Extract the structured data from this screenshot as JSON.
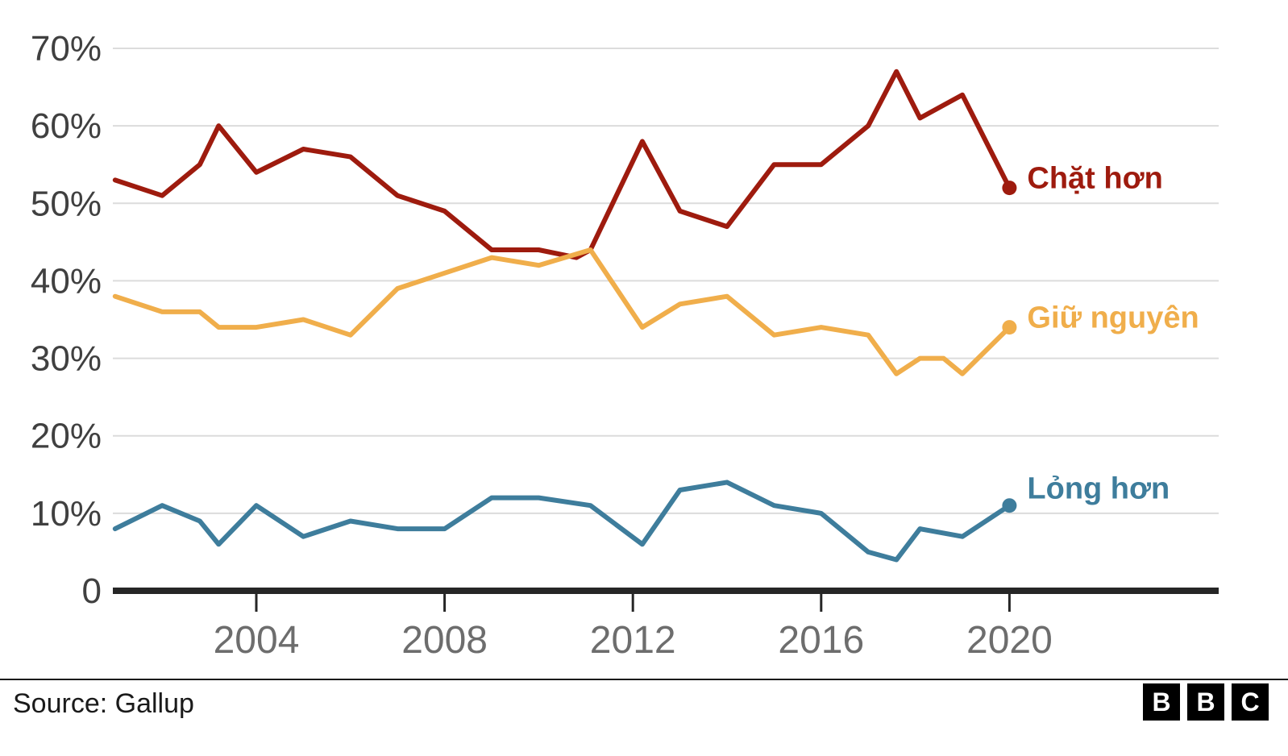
{
  "chart_data": {
    "type": "line",
    "title": "",
    "xlabel": "",
    "ylabel": "",
    "y_max": 70,
    "grid": "horizontal",
    "colors": {
      "grid": "#dcdcdc",
      "axis": "#262626",
      "y_tick_label": "#404040",
      "x_tick_label": "#6d6d6d"
    },
    "y_ticks": [
      {
        "value": 70,
        "label": "70%"
      },
      {
        "value": 60,
        "label": "60%"
      },
      {
        "value": 50,
        "label": "50%"
      },
      {
        "value": 40,
        "label": "40%"
      },
      {
        "value": 30,
        "label": "30%"
      },
      {
        "value": 20,
        "label": "20%"
      },
      {
        "value": 10,
        "label": "10%"
      },
      {
        "value": 0,
        "label": "0"
      }
    ],
    "x_ticks": [
      {
        "value": 2004,
        "label": "2004"
      },
      {
        "value": 2008,
        "label": "2008"
      },
      {
        "value": 2012,
        "label": "2012"
      },
      {
        "value": 2016,
        "label": "2016"
      },
      {
        "value": 2020,
        "label": "2020"
      }
    ],
    "series": [
      {
        "id": "chat-hon",
        "name": "Chặt hơn",
        "color": "#9e1b0e",
        "points": [
          [
            2001,
            53
          ],
          [
            2002,
            51
          ],
          [
            2002.8,
            55
          ],
          [
            2003.2,
            60
          ],
          [
            2004,
            54
          ],
          [
            2005,
            57
          ],
          [
            2006,
            56
          ],
          [
            2007,
            51
          ],
          [
            2008,
            49
          ],
          [
            2009,
            44
          ],
          [
            2010,
            44
          ],
          [
            2010.8,
            43
          ],
          [
            2011.1,
            44
          ],
          [
            2012.2,
            58
          ],
          [
            2013,
            49
          ],
          [
            2014,
            47
          ],
          [
            2015,
            55
          ],
          [
            2016,
            55
          ],
          [
            2017,
            60
          ],
          [
            2017.6,
            67
          ],
          [
            2018.1,
            61
          ],
          [
            2019,
            64
          ],
          [
            2020,
            52
          ]
        ]
      },
      {
        "id": "giu-nguyen",
        "name": "Giữ nguyên",
        "color": "#f0ae4b",
        "points": [
          [
            2001,
            38
          ],
          [
            2002,
            36
          ],
          [
            2002.8,
            36
          ],
          [
            2003.2,
            34
          ],
          [
            2004,
            34
          ],
          [
            2005,
            35
          ],
          [
            2006,
            33
          ],
          [
            2007,
            39
          ],
          [
            2008,
            41
          ],
          [
            2009,
            43
          ],
          [
            2010,
            42
          ],
          [
            2011.1,
            44
          ],
          [
            2012.2,
            34
          ],
          [
            2013,
            37
          ],
          [
            2014,
            38
          ],
          [
            2015,
            33
          ],
          [
            2016,
            34
          ],
          [
            2017,
            33
          ],
          [
            2017.6,
            28
          ],
          [
            2018.1,
            30
          ],
          [
            2018.6,
            30
          ],
          [
            2019,
            28
          ],
          [
            2020,
            34
          ]
        ]
      },
      {
        "id": "long-hon",
        "name": "Lỏng hơn",
        "color": "#3e7d9c",
        "points": [
          [
            2001,
            8
          ],
          [
            2002,
            11
          ],
          [
            2002.8,
            9
          ],
          [
            2003.2,
            6
          ],
          [
            2004,
            11
          ],
          [
            2005,
            7
          ],
          [
            2006,
            9
          ],
          [
            2007,
            8
          ],
          [
            2008,
            8
          ],
          [
            2009,
            12
          ],
          [
            2010,
            12
          ],
          [
            2011.1,
            11
          ],
          [
            2012.2,
            6
          ],
          [
            2013,
            13
          ],
          [
            2014,
            14
          ],
          [
            2015,
            11
          ],
          [
            2016,
            10
          ],
          [
            2017,
            5
          ],
          [
            2017.6,
            4
          ],
          [
            2018.1,
            8
          ],
          [
            2019,
            7
          ],
          [
            2020,
            11
          ]
        ]
      }
    ]
  },
  "footer": {
    "source": "Source: Gallup",
    "logo_letters": [
      "B",
      "B",
      "C"
    ]
  }
}
